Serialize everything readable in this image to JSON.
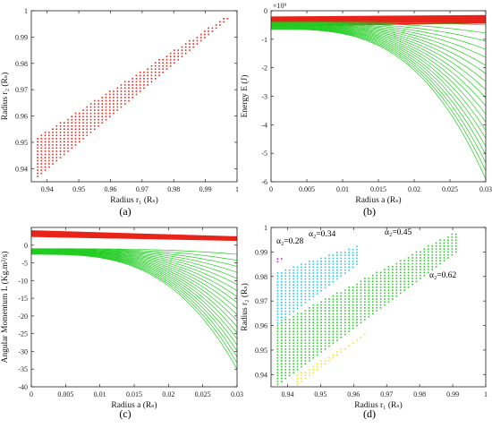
{
  "chart_data": [
    {
      "panel": "(a)",
      "type": "scatter",
      "xlabel": "Radius r₁ (Rₛ)",
      "ylabel": "Radius r₂ (Rₛ)",
      "xlim": [
        0.935,
        1.0
      ],
      "ylim": [
        0.935,
        1.0
      ],
      "xticks": [
        "0.94",
        "0.95",
        "0.96",
        "0.97",
        "0.98",
        "0.99",
        "1"
      ],
      "yticks": [
        "0.94",
        "0.95",
        "0.96",
        "0.97",
        "0.98",
        "0.99",
        "1"
      ],
      "series": [
        {
          "color": "#e8231a",
          "region": {
            "x_min": 0.937,
            "x_max": 0.997,
            "y_lower_offset": 0.0,
            "y_upper_at_xmin": 0.952,
            "y_upper_at_xmax": 0.998
          }
        }
      ],
      "grid": false
    },
    {
      "panel": "(b)",
      "type": "line",
      "xlabel": "Radius a (Rₛ)",
      "ylabel": "Energy E (J)",
      "y_exponent": "×10⁹",
      "xlim": [
        0,
        0.03
      ],
      "ylim": [
        -6,
        0
      ],
      "xticks": [
        "0",
        "0.005",
        "0.01",
        "0.015",
        "0.02",
        "0.025",
        "0.03"
      ],
      "yticks": [
        "0",
        "-1",
        "-2",
        "-3",
        "-4",
        "-5",
        "-6"
      ],
      "series": [
        {
          "color": "#e8231a",
          "band": {
            "y_start": [
              -0.55,
              -0.2
            ],
            "y_end": [
              -0.45,
              -0.15
            ]
          }
        },
        {
          "color": "#22cc22",
          "family": {
            "y_start": [
              -0.65,
              -0.4
            ],
            "y_end": [
              -5.9,
              -0.5
            ],
            "curves": 20
          }
        }
      ],
      "grid": false
    },
    {
      "panel": "(c)",
      "type": "line",
      "xlabel": "Radius a (Rₛ)",
      "ylabel": "Angular Momentum L (Kg.m²/s)",
      "xlim": [
        0,
        0.03
      ],
      "ylim": [
        -40,
        5
      ],
      "xticks": [
        "0",
        "0.005",
        "0.01",
        "0.015",
        "0.02",
        "0.025",
        "0.03"
      ],
      "yticks": [
        "0",
        "-5",
        "-10",
        "-15",
        "-20",
        "-25",
        "-30",
        "-35",
        "-40"
      ],
      "series": [
        {
          "color": "#e8231a",
          "band": {
            "y_start": [
              2.3,
              4.2
            ],
            "y_end": [
              1.2,
              2.5
            ]
          }
        },
        {
          "color": "#22cc22",
          "family": {
            "y_start": [
              -2.6,
              -1.0
            ],
            "y_end": [
              -35,
              -2.6
            ],
            "curves": 20
          }
        }
      ],
      "grid": false
    },
    {
      "panel": "(d)",
      "type": "scatter",
      "xlabel": "Radius r₁ (Rₛ)",
      "ylabel": "Radius r₂ (Rₛ)",
      "xlim": [
        0.935,
        1.0
      ],
      "ylim": [
        0.935,
        1.0
      ],
      "xticks": [
        "0.94",
        "0.95",
        "0.96",
        "0.97",
        "0.98",
        "0.99",
        "1"
      ],
      "yticks": [
        "0.94",
        "0.95",
        "0.96",
        "0.97",
        "0.98",
        "0.99",
        "1"
      ],
      "series": [
        {
          "name": "α₂=0.28",
          "color": "#cc22cc",
          "region": {
            "x_min": 0.937,
            "x_max": 0.939,
            "y_low_at_xmin": 0.986,
            "y_high_at_xmin": 0.988,
            "y_high_at_xmax": 0.988
          }
        },
        {
          "name": "α₂=0.34",
          "color": "#22c8e8",
          "region": {
            "x_min": 0.937,
            "x_max": 0.962,
            "y_low_at_xmin": 0.961,
            "y_high_at_xmin": 0.982,
            "y_high_at_xmax": 0.993
          }
        },
        {
          "name": "α₂=0.45",
          "color": "#22cc22",
          "region": {
            "x_min": 0.937,
            "x_max": 0.992,
            "y_low_at_xmin": 0.936,
            "y_high_at_xmin": 0.961,
            "y_high_at_xmax": 0.999
          }
        },
        {
          "name": "α₂=0.62",
          "color": "#e8e822",
          "region": {
            "x_min": 0.943,
            "x_max": 0.994,
            "y_low_at_xmin": 0.936,
            "y_high_at_xmin": 0.94,
            "y_high_at_xmax": 0.981
          }
        }
      ],
      "grid": false
    }
  ]
}
